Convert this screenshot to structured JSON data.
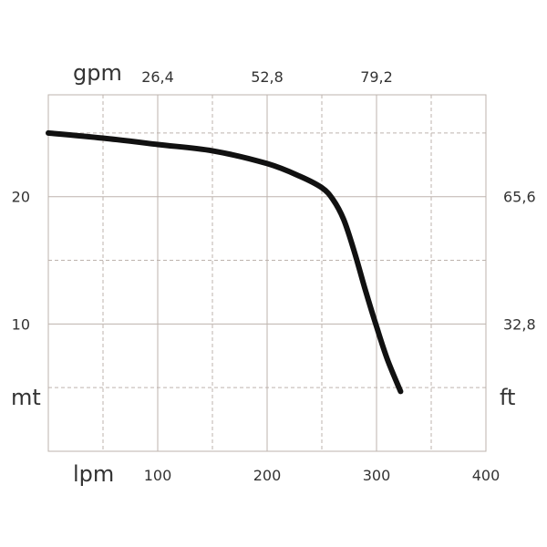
{
  "chart_data": {
    "type": "line",
    "x_unit_bottom": "lpm",
    "x_unit_top": "gpm",
    "y_unit_left": "mt",
    "y_unit_right": "ft",
    "xlim": [
      0,
      400
    ],
    "ylim": [
      0,
      28
    ],
    "x_ticks_bottom": [
      100,
      200,
      300,
      400
    ],
    "x_tick_labels_bottom": [
      "100",
      "200",
      "300",
      "400"
    ],
    "x_ticks_top": [
      100,
      200,
      300
    ],
    "x_tick_labels_top": [
      "26,4",
      "52,8",
      "79,2"
    ],
    "y_ticks_left": [
      10,
      20
    ],
    "y_tick_labels_left": [
      "10",
      "20"
    ],
    "y_ticks_right": [
      10,
      20
    ],
    "y_tick_labels_right": [
      "32,8",
      "65,6"
    ],
    "grid": true,
    "series": [
      {
        "color": "#111111",
        "x": [
          0,
          50,
          100,
          150,
          200,
          230,
          250,
          260,
          270,
          280,
          290,
          300,
          310,
          322
        ],
        "y": [
          25.0,
          24.6,
          24.1,
          23.6,
          22.6,
          21.6,
          20.7,
          19.8,
          18.2,
          15.6,
          12.6,
          9.8,
          7.2,
          4.7
        ]
      }
    ]
  }
}
